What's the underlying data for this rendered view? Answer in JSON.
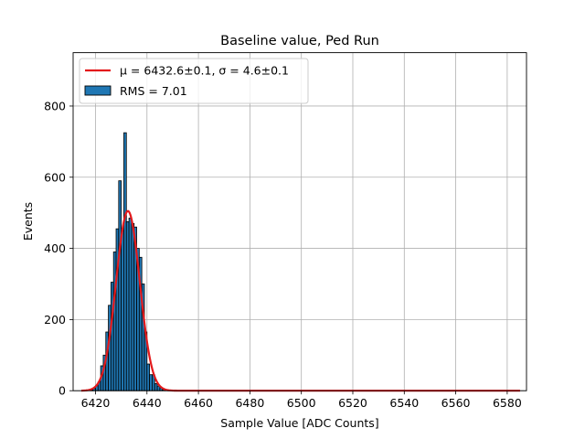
{
  "chart_data": {
    "type": "bar",
    "title": "Baseline value, Ped Run",
    "xlabel": "Sample Value [ADC Counts]",
    "ylabel": "Events",
    "xlim": [
      6411.3,
      6587.5
    ],
    "ylim": [
      0,
      950
    ],
    "xticks": [
      6420,
      6440,
      6460,
      6480,
      6500,
      6520,
      6540,
      6560,
      6580
    ],
    "yticks": [
      0,
      200,
      400,
      600,
      800
    ],
    "grid": true,
    "legend_position": "top-left",
    "legend": [
      {
        "label": "μ = 6432.6±0.1, σ = 4.6±0.1",
        "kind": "line",
        "color": "#e31a1c"
      },
      {
        "label": "RMS = 7.01",
        "kind": "bar",
        "color": "#1f77b4"
      }
    ],
    "histogram": {
      "name": "RMS = 7.01",
      "color": "#1f77b4",
      "bin_width": 1,
      "bin_starts": [
        6418,
        6419,
        6420,
        6421,
        6422,
        6423,
        6424,
        6425,
        6426,
        6427,
        6428,
        6429,
        6430,
        6431,
        6432,
        6433,
        6434,
        6435,
        6436,
        6437,
        6438,
        6439,
        6440,
        6441,
        6442,
        6443,
        6444,
        6445,
        6446,
        6447,
        6448
      ],
      "values": [
        2,
        6,
        14,
        25,
        70,
        100,
        165,
        240,
        305,
        390,
        455,
        590,
        450,
        725,
        475,
        485,
        470,
        460,
        400,
        375,
        300,
        165,
        75,
        45,
        45,
        20,
        13,
        8,
        3,
        2,
        1
      ]
    },
    "fit": {
      "name": "μ = 6432.6±0.1, σ = 4.6±0.1",
      "color": "#e31a1c",
      "mu": 6432.6,
      "sigma": 4.6,
      "amplitude": 505,
      "x_range": [
        6414.5,
        6585
      ]
    }
  }
}
